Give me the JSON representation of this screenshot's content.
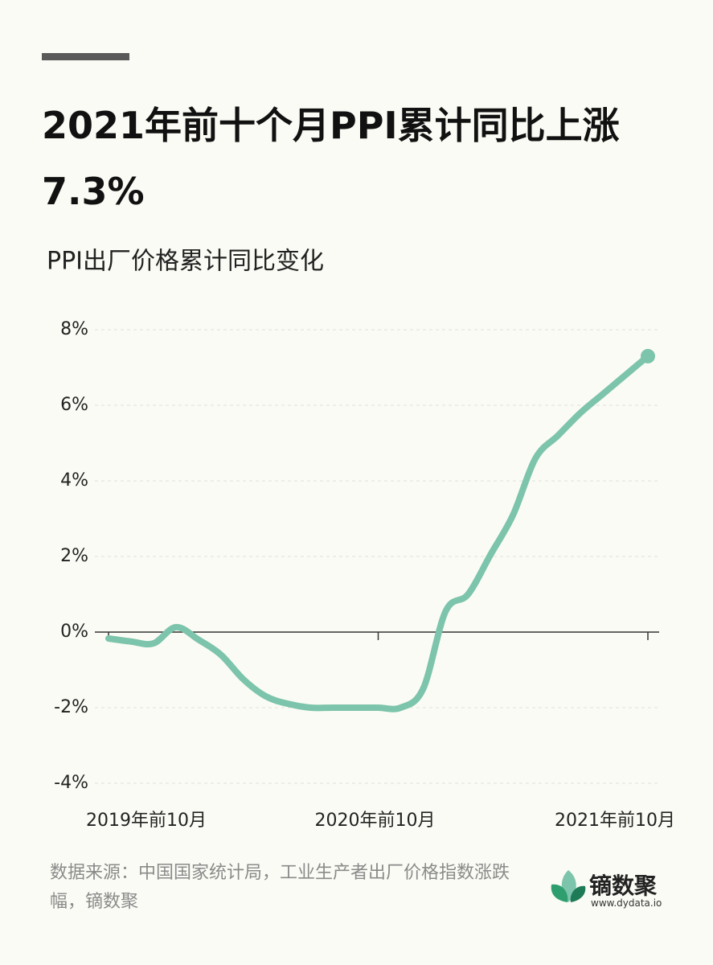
{
  "header": {
    "title": "2021年前十个月PPI累计同比上涨7.3%"
  },
  "chart_data": {
    "type": "line",
    "title": "PPI出厂价格累计同比变化",
    "categories": [
      "2019年前10月",
      null,
      null,
      null,
      null,
      null,
      null,
      null,
      null,
      null,
      null,
      null,
      "2020年前10月",
      null,
      null,
      null,
      null,
      null,
      null,
      null,
      null,
      null,
      null,
      null,
      "2021年前10月"
    ],
    "series": [
      {
        "name": "PPI出厂价格累计同比",
        "color": "#7cc4ab",
        "values": [
          -0.17,
          -0.25,
          -0.3,
          0.13,
          -0.2,
          -0.6,
          -1.25,
          -1.7,
          -1.9,
          -2.0,
          -2.0,
          -2.0,
          -2.0,
          -2.0,
          -1.5,
          0.55,
          1.0,
          2.05,
          3.1,
          4.6,
          5.2,
          5.8,
          6.3,
          6.8,
          7.3
        ]
      }
    ],
    "ylim": [
      -4,
      8
    ],
    "yticks": [
      {
        "value": -4,
        "label": "-4%"
      },
      {
        "value": -2,
        "label": "-2%"
      },
      {
        "value": 0,
        "label": "0%"
      },
      {
        "value": 2,
        "label": "2%"
      },
      {
        "value": 4,
        "label": "4%"
      },
      {
        "value": 6,
        "label": "6%"
      },
      {
        "value": 8,
        "label": "8%"
      }
    ],
    "grid": true
  },
  "footer": {
    "source": "数据来源：中国国家统计局，工业生产者出厂价格指数涨跌幅，镝数聚",
    "brand": "镝数聚",
    "url": "www.dydata.io"
  }
}
